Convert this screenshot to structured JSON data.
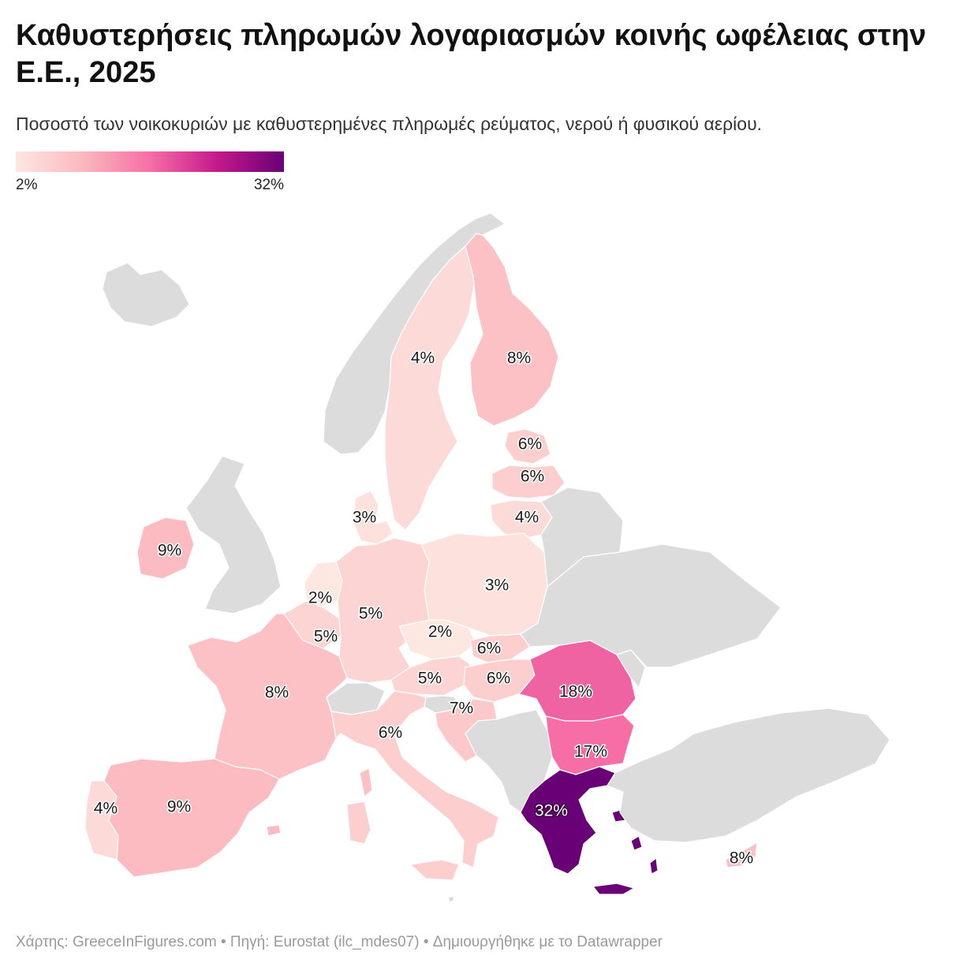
{
  "header": {
    "title": "Καθυστερήσεις πληρωμών λογαριασμών κοινής ωφέλειας στην Ε.Ε., 2025",
    "subtitle": "Ποσοστό των νοικοκυριών με καθυστερημένες πληρωμές ρεύματος, νερού ή φυσικού αερίου."
  },
  "legend": {
    "min_label": "2%",
    "max_label": "32%",
    "min": 2,
    "max": 32,
    "colors": [
      "#fde7e1",
      "#fbb8be",
      "#f76ea6",
      "#c5198d",
      "#6a0075"
    ]
  },
  "map_data": {
    "no_data_color": "#dcdcdc",
    "regions": [
      {
        "name": "Iceland",
        "value": null
      },
      {
        "name": "Norway",
        "value": null
      },
      {
        "name": "United Kingdom",
        "value": null
      },
      {
        "name": "Switzerland",
        "value": null
      },
      {
        "name": "Western Balkans",
        "value": null
      },
      {
        "name": "Belarus",
        "value": null
      },
      {
        "name": "Ukraine",
        "value": null
      },
      {
        "name": "Moldova",
        "value": null
      },
      {
        "name": "Turkey",
        "value": null
      },
      {
        "name": "Sweden",
        "value": 4,
        "label": "4%"
      },
      {
        "name": "Finland",
        "value": 8,
        "label": "8%"
      },
      {
        "name": "Estonia",
        "value": 6,
        "label": "6%"
      },
      {
        "name": "Latvia",
        "value": 6,
        "label": "6%"
      },
      {
        "name": "Lithuania",
        "value": 4,
        "label": "4%"
      },
      {
        "name": "Denmark",
        "value": 3,
        "label": "3%"
      },
      {
        "name": "Ireland",
        "value": 9,
        "label": "9%"
      },
      {
        "name": "Netherlands",
        "value": 2,
        "label": "2%"
      },
      {
        "name": "Belgium",
        "value": 5,
        "label": "5%"
      },
      {
        "name": "Luxembourg",
        "value": null
      },
      {
        "name": "Germany",
        "value": 5,
        "label": "5%"
      },
      {
        "name": "Poland",
        "value": 3,
        "label": "3%"
      },
      {
        "name": "Czechia",
        "value": 2,
        "label": "2%"
      },
      {
        "name": "Slovakia",
        "value": 6,
        "label": "6%"
      },
      {
        "name": "Austria",
        "value": 5,
        "label": "5%"
      },
      {
        "name": "Hungary",
        "value": 6,
        "label": "6%"
      },
      {
        "name": "Slovenia",
        "value": null
      },
      {
        "name": "Croatia",
        "value": 7,
        "label": "7%"
      },
      {
        "name": "Romania",
        "value": 18,
        "label": "18%"
      },
      {
        "name": "Bulgaria",
        "value": 17,
        "label": "17%"
      },
      {
        "name": "Greece",
        "value": 32,
        "label": "32%"
      },
      {
        "name": "France",
        "value": 8,
        "label": "8%"
      },
      {
        "name": "Italy",
        "value": 6,
        "label": "6%"
      },
      {
        "name": "Spain",
        "value": 9,
        "label": "9%"
      },
      {
        "name": "Portugal",
        "value": 4,
        "label": "4%"
      },
      {
        "name": "Cyprus",
        "value": 8,
        "label": "8%"
      },
      {
        "name": "Malta",
        "value": null
      }
    ]
  },
  "footer": {
    "credit": "Χάρτης: GreeceInFigures.com • Πηγή: Eurostat (ilc_mdes07)  • Δημιουργήθηκε με το Datawrapper"
  }
}
